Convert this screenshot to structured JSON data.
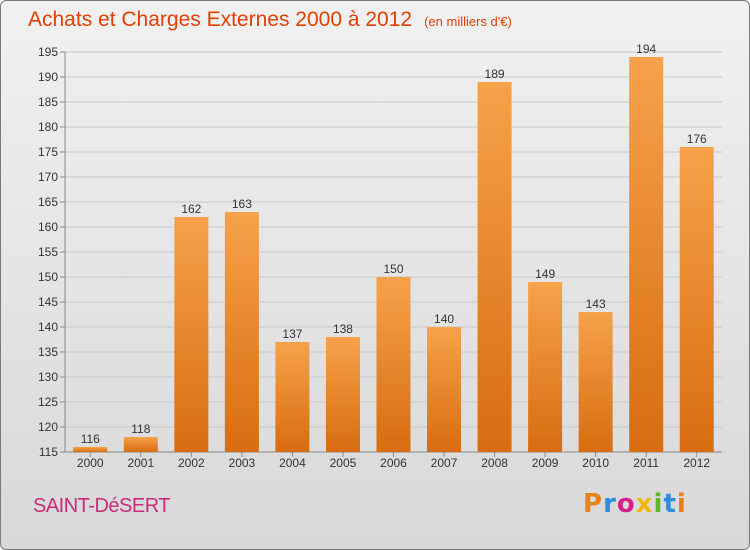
{
  "header": {
    "title": "Achats et Charges Externes 2000 à 2012",
    "unit": "(en milliers d'€)"
  },
  "footer": {
    "commune": "SAINT-DéSERT",
    "brand": "Proxiti",
    "brand_colors": [
      "#e8811a",
      "#2b8ee0",
      "#d6208a",
      "#f2b705",
      "#5cb82c",
      "#2b8ee0",
      "#e8811a"
    ]
  },
  "colors": {
    "accent": "#e23f00",
    "bar": "#f0922f",
    "grid": "#c4c4c4",
    "commune": "#cc2a7a"
  },
  "chart_data": {
    "type": "bar",
    "title": "Achats et Charges Externes 2000 à 2012",
    "subtitle": "(en milliers d'€)",
    "xlabel": "",
    "ylabel": "",
    "categories": [
      "2000",
      "2001",
      "2002",
      "2003",
      "2004",
      "2005",
      "2006",
      "2007",
      "2008",
      "2009",
      "2010",
      "2011",
      "2012"
    ],
    "values": [
      116,
      118,
      162,
      163,
      137,
      138,
      150,
      140,
      189,
      149,
      143,
      194,
      176
    ],
    "ylim": [
      115,
      195
    ],
    "yticks": [
      115,
      120,
      125,
      130,
      135,
      140,
      145,
      150,
      155,
      160,
      165,
      170,
      175,
      180,
      185,
      190,
      195
    ],
    "grid": true,
    "legend": "none"
  }
}
